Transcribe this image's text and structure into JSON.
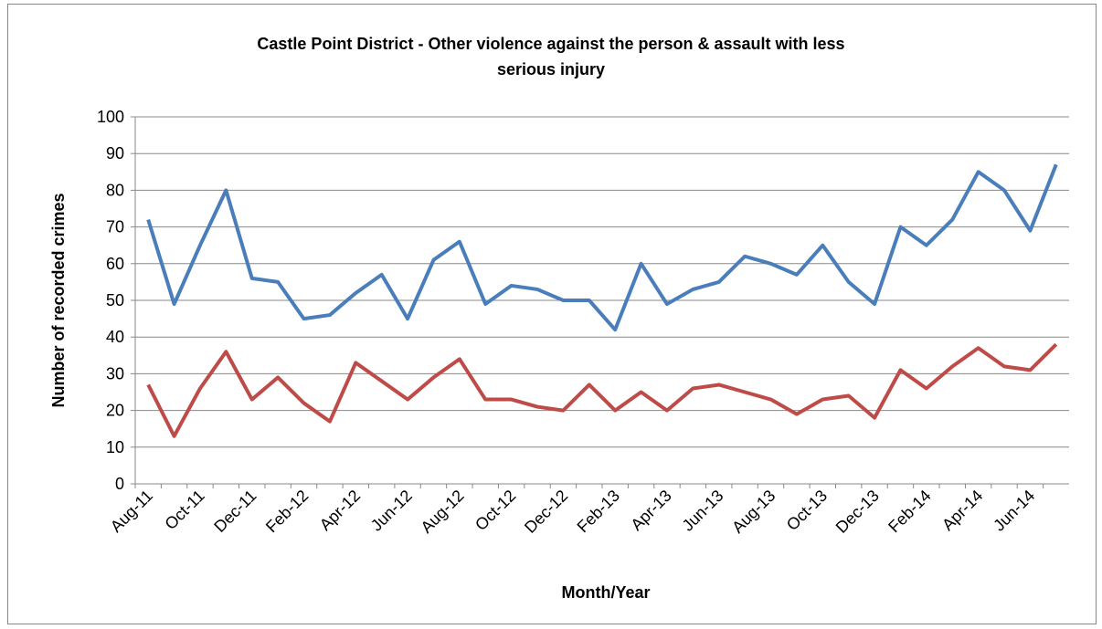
{
  "chart_data": {
    "type": "line",
    "title": "Castle Point District - Other violence against the person & assault with less serious injury",
    "xlabel": "Month/Year",
    "ylabel": "Number of recorded crimes",
    "categories": [
      "Aug-11",
      null,
      "Oct-11",
      null,
      "Dec-11",
      null,
      "Feb-12",
      null,
      "Apr-12",
      null,
      "Jun-12",
      null,
      "Aug-12",
      null,
      "Oct-12",
      null,
      "Dec-12",
      null,
      "Feb-13",
      null,
      "Apr-13",
      null,
      "Jun-13",
      null,
      "Aug-13",
      null,
      "Oct-13",
      null,
      "Dec-13",
      null,
      "Feb-14",
      null,
      "Apr-14",
      null,
      "Jun-14",
      null
    ],
    "series": [
      {
        "color": "#4a7ebb",
        "values": [
          72,
          49,
          65,
          80,
          56,
          55,
          45,
          46,
          52,
          57,
          45,
          61,
          66,
          49,
          54,
          53,
          50,
          50,
          42,
          60,
          49,
          53,
          55,
          62,
          60,
          57,
          65,
          55,
          49,
          70,
          65,
          72,
          85,
          80,
          69,
          87
        ]
      },
      {
        "color": "#be4b48",
        "values": [
          27,
          13,
          26,
          36,
          23,
          29,
          22,
          17,
          33,
          28,
          23,
          29,
          34,
          23,
          23,
          21,
          20,
          27,
          20,
          25,
          20,
          26,
          27,
          25,
          23,
          19,
          23,
          24,
          18,
          31,
          26,
          32,
          37,
          32,
          31,
          38
        ]
      }
    ],
    "ylim": [
      0,
      100
    ],
    "yticks": [
      0,
      10,
      20,
      30,
      40,
      50,
      60,
      70,
      80,
      90,
      100
    ],
    "grid": true
  }
}
